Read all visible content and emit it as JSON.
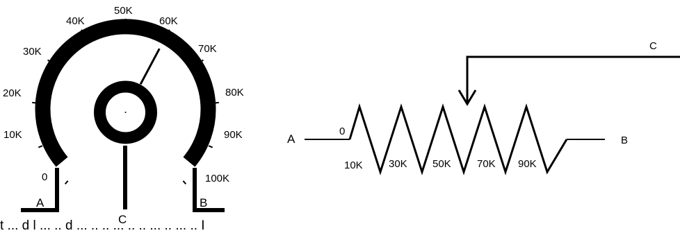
{
  "potentiometer": {
    "scale": [
      {
        "label": "0"
      },
      {
        "label": "10K"
      },
      {
        "label": "20K"
      },
      {
        "label": "30K"
      },
      {
        "label": "40K"
      },
      {
        "label": "50K"
      },
      {
        "label": "60K"
      },
      {
        "label": "70K"
      },
      {
        "label": "80K"
      },
      {
        "label": "90K"
      },
      {
        "label": "100K"
      }
    ],
    "wiper_position": 0.6,
    "terminals": {
      "a": "A",
      "b": "B",
      "c": "C"
    }
  },
  "resistor_symbol": {
    "terminal_a": "A",
    "terminal_b": "B",
    "terminal_c": "C",
    "start_label": "0",
    "peak_labels": [
      "10K",
      "30K",
      "50K",
      "70K",
      "90K"
    ]
  },
  "caption": "t  ...  d  l  ...  ..  d  ...  ..  ..  ...  ..  ..  ...  ..  ...  ..  İ"
}
